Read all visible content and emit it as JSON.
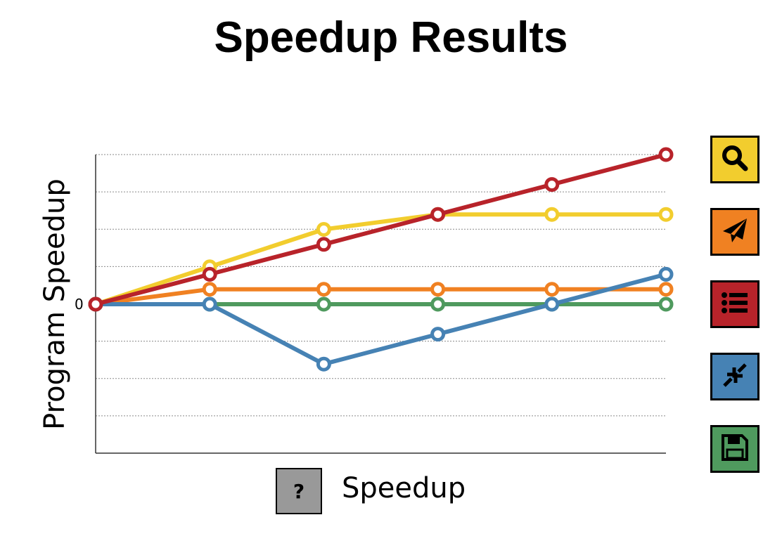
{
  "title": "Speedup Results",
  "ytick_label": "0",
  "legend": {
    "button_label": "?",
    "label": "Speedup"
  },
  "toolbar": [
    {
      "icon": "search-icon",
      "color": "#f2cd2e"
    },
    {
      "icon": "paper-plane-icon",
      "color": "#f08122"
    },
    {
      "icon": "list-icon",
      "color": "#b8232a"
    },
    {
      "icon": "compress-icon",
      "color": "#4682b4"
    },
    {
      "icon": "save-icon",
      "color": "#4f9a5e"
    }
  ],
  "chart_data": {
    "type": "line",
    "ylabel": "Program Speedup",
    "xlabel": "Speedup",
    "x": [
      0,
      1,
      2,
      3,
      4,
      5
    ],
    "xlim": [
      0,
      5
    ],
    "ylim": [
      -10,
      10
    ],
    "y_tick_values": [
      0
    ],
    "grid": "horizontal dotted",
    "series": [
      {
        "color": "#f2cd2e",
        "values": [
          0,
          2.5,
          5,
          6,
          6,
          6
        ]
      },
      {
        "color": "#f08122",
        "values": [
          0,
          1,
          1,
          1,
          1,
          1
        ]
      },
      {
        "color": "#4f9a5e",
        "values": [
          0,
          0,
          0,
          0,
          0,
          0
        ]
      },
      {
        "color": "#4682b4",
        "values": [
          0,
          0,
          -4,
          -2,
          0,
          2
        ]
      },
      {
        "color": "#b8232a",
        "values": [
          0,
          2,
          4,
          6,
          8,
          10
        ]
      }
    ]
  }
}
